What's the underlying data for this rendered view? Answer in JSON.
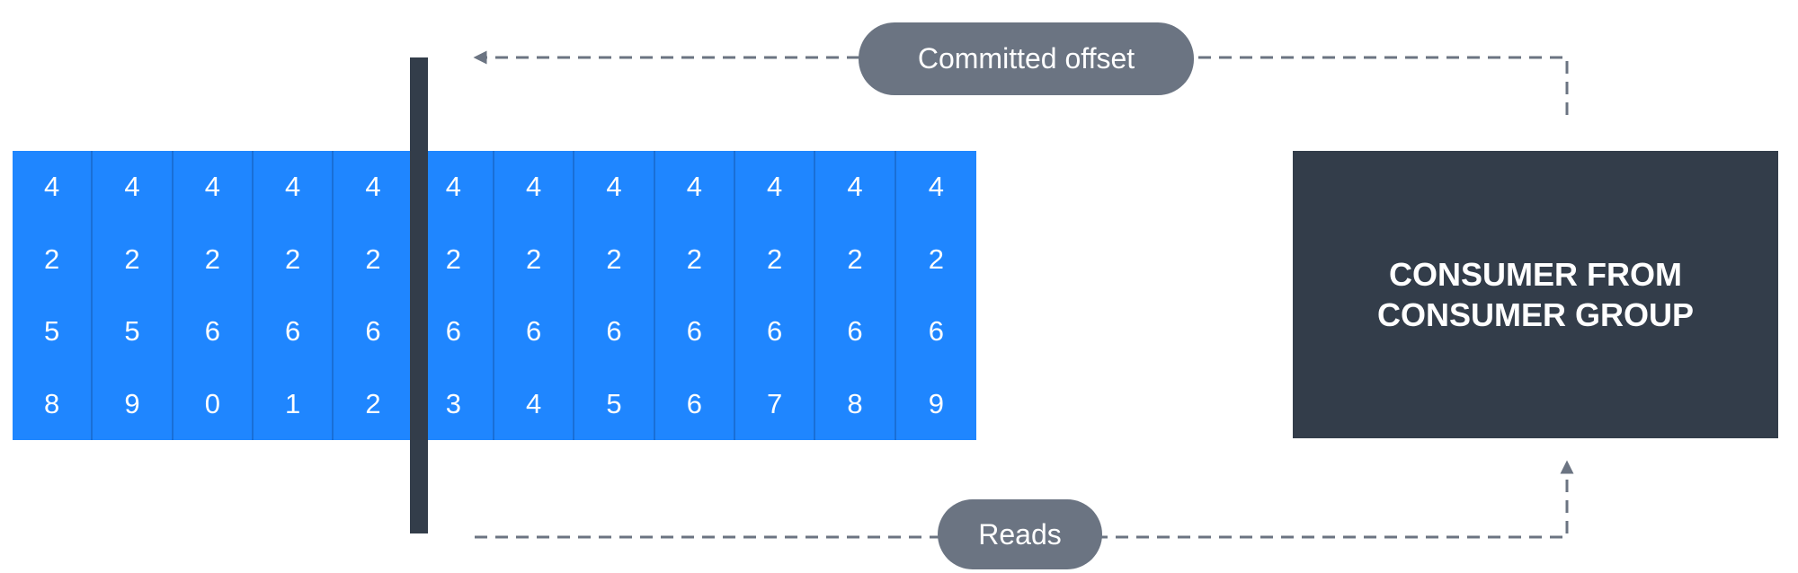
{
  "log": {
    "columns": [
      [
        "4",
        "2",
        "5",
        "8"
      ],
      [
        "4",
        "2",
        "5",
        "9"
      ],
      [
        "4",
        "2",
        "6",
        "0"
      ],
      [
        "4",
        "2",
        "6",
        "1"
      ],
      [
        "4",
        "2",
        "6",
        "2"
      ],
      [
        "4",
        "2",
        "6",
        "3"
      ],
      [
        "4",
        "2",
        "6",
        "4"
      ],
      [
        "4",
        "2",
        "6",
        "5"
      ],
      [
        "4",
        "2",
        "6",
        "6"
      ],
      [
        "4",
        "2",
        "6",
        "7"
      ],
      [
        "4",
        "2",
        "6",
        "8"
      ],
      [
        "4",
        "2",
        "6",
        "9"
      ]
    ]
  },
  "labels": {
    "committed": "Committed offset",
    "reads": "Reads"
  },
  "consumer": {
    "label": "CONSUMER FROM\nCONSUMER GROUP"
  },
  "colors": {
    "log_fill": "#1f86ff",
    "dark": "#333d4a",
    "pill": "#6b7482",
    "arrow": "#6b7482"
  }
}
